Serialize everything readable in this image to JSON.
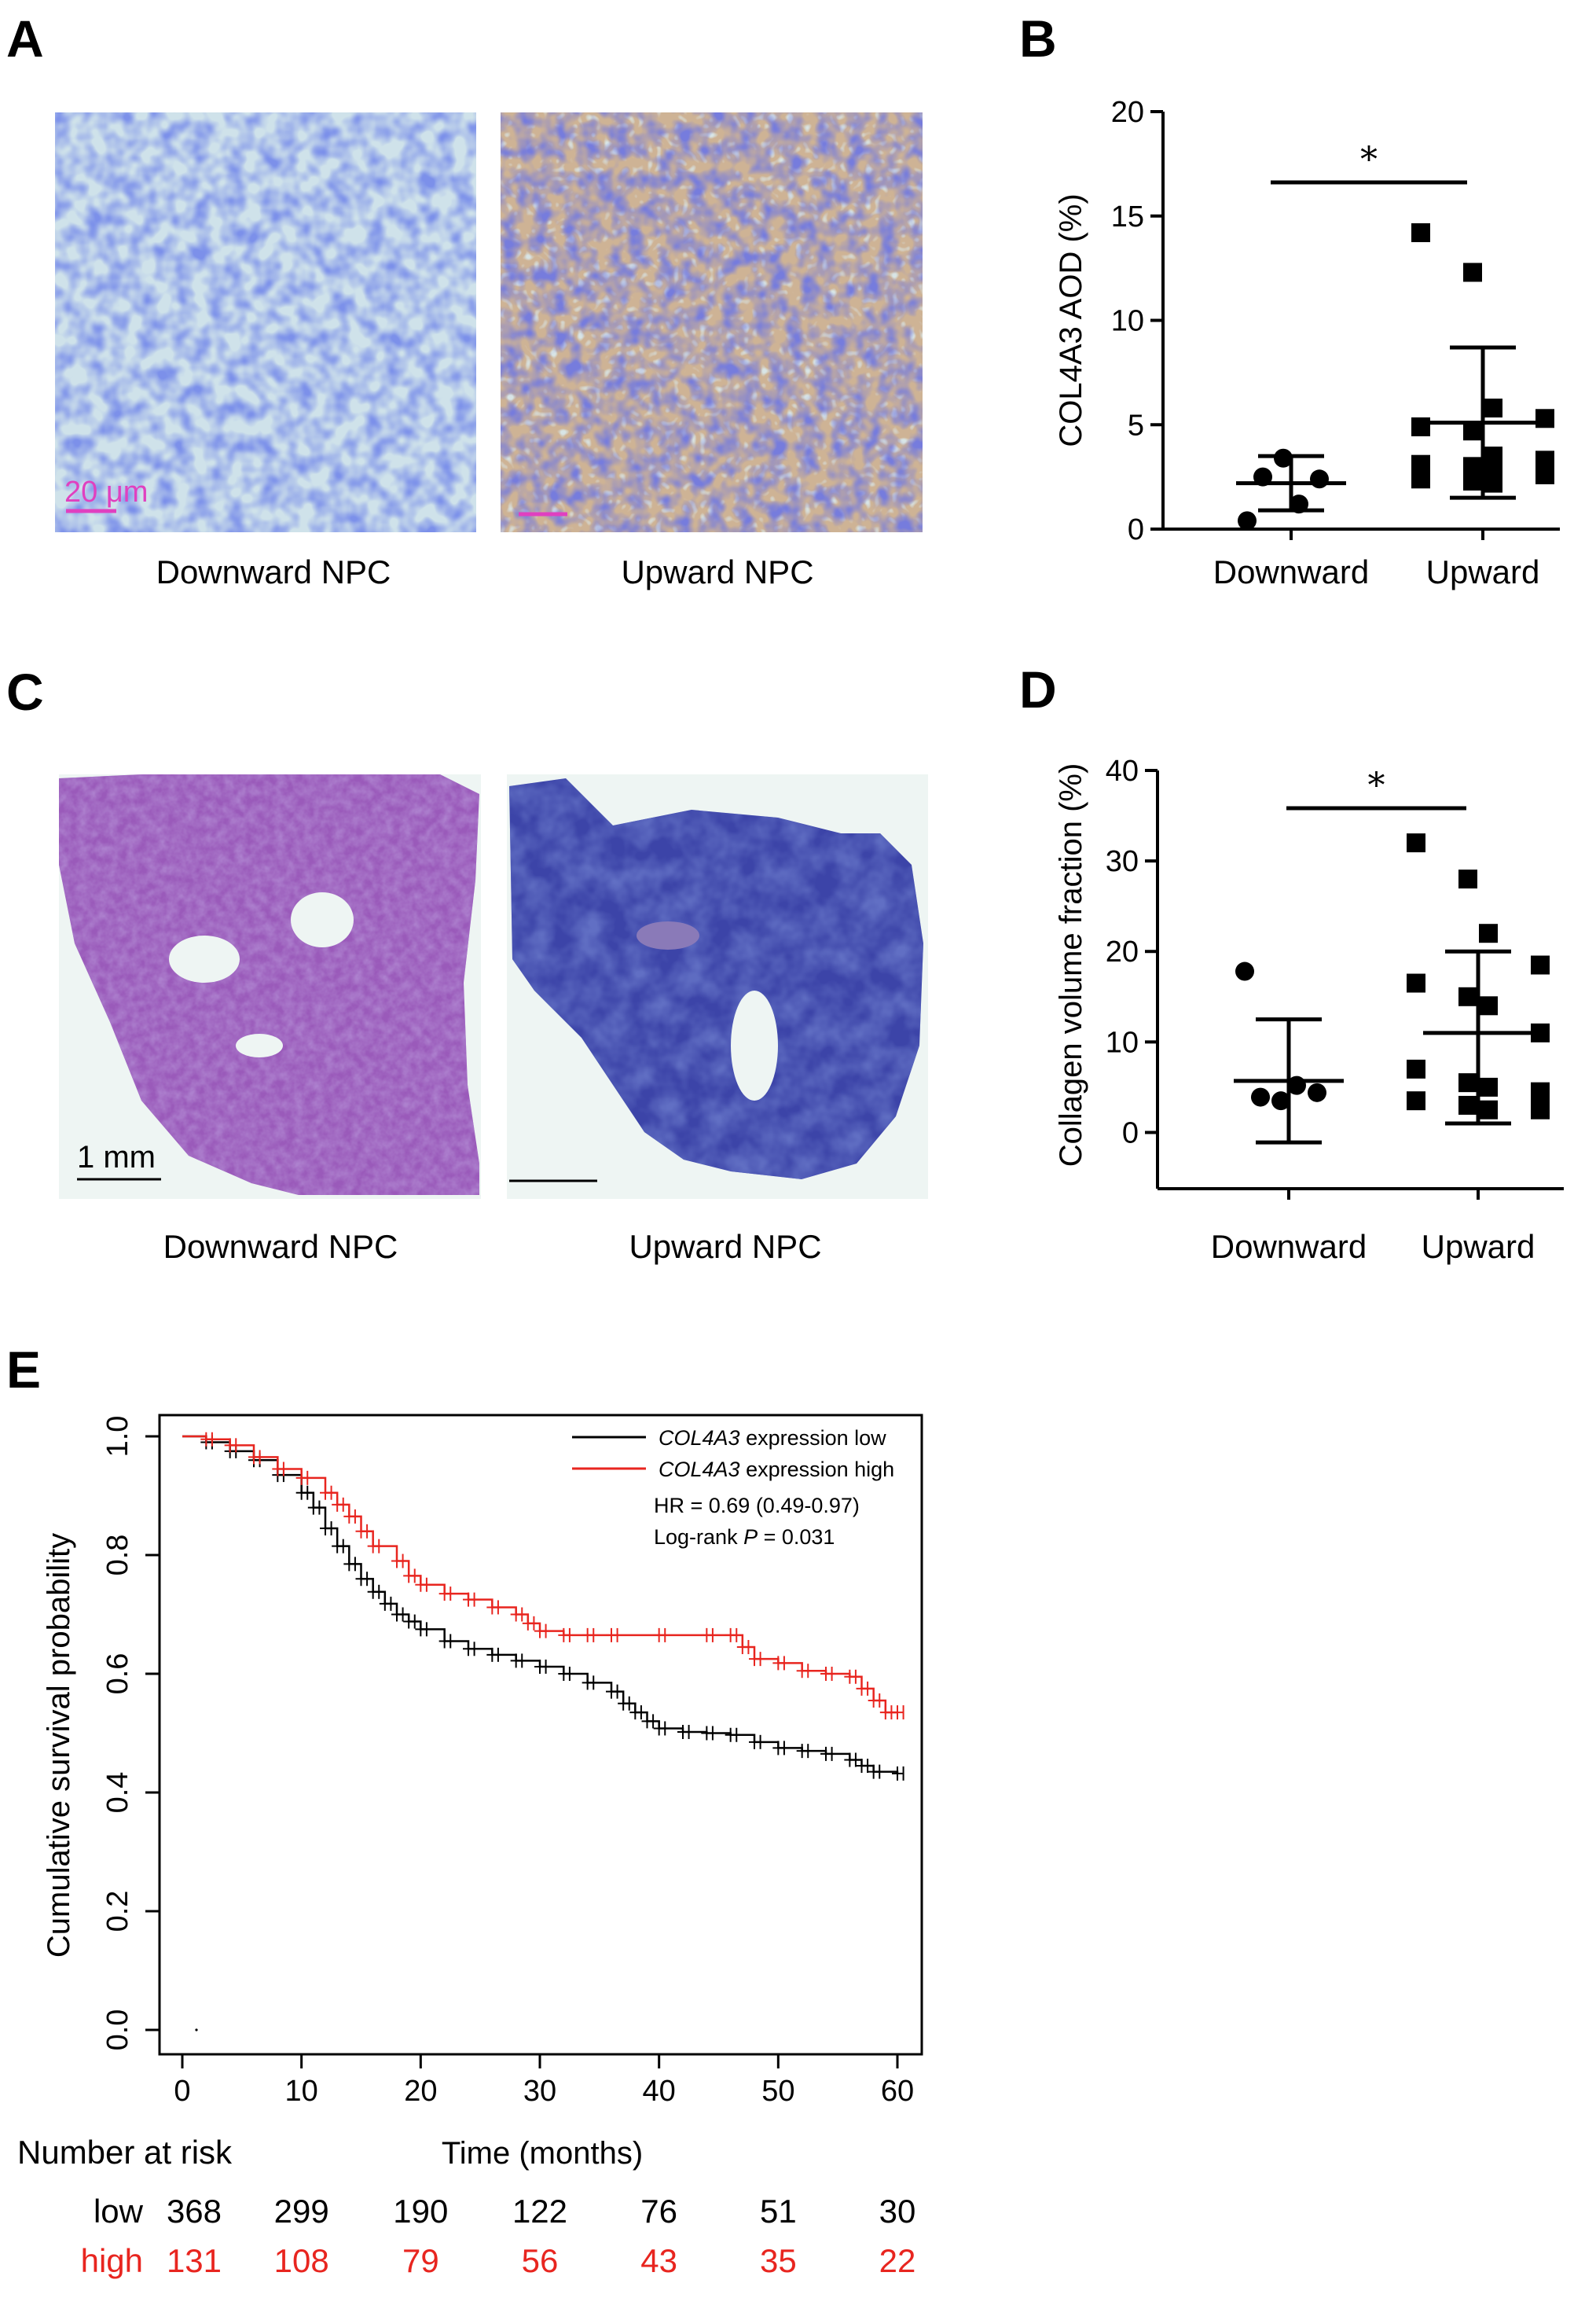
{
  "panels": {
    "A": {
      "label": "A",
      "left_caption": "Downward NPC",
      "right_caption": "Upward NPC",
      "scale_bar": "20 μm"
    },
    "B": {
      "label": "B",
      "significance": "*"
    },
    "C": {
      "label": "C",
      "left_caption": "Downward NPC",
      "right_caption": "Upward NPC",
      "scale_bar": "1 mm"
    },
    "D": {
      "label": "D",
      "significance": "*"
    },
    "E": {
      "label": "E",
      "risk_title": "Number at risk",
      "hr_text": "HR = 0.69 (0.49-0.97)",
      "logrank_prefix": "Log-rank ",
      "logrank_p": "P",
      "logrank_value": " = 0.031",
      "risk_table": {
        "rows": [
          {
            "label": "low",
            "color": "#000000",
            "values": [
              "368",
              "299",
              "190",
              "122",
              "76",
              "51",
              "30"
            ]
          },
          {
            "label": "high",
            "color": "#e8251f",
            "values": [
              "131",
              "108",
              "79",
              "56",
              "43",
              "35",
              "22"
            ]
          }
        ]
      }
    }
  },
  "colors": {
    "low": "#000000",
    "high": "#e8251f",
    "scale_pink": "#e040c0"
  },
  "chart_data": [
    {
      "id": "B",
      "type": "scatter",
      "title": "",
      "ylabel": "COL4A3 AOD (%)",
      "xlabel": "",
      "categories": [
        "Downward",
        "Upward"
      ],
      "ylim": [
        0,
        20
      ],
      "yticks": [
        0,
        5,
        10,
        15,
        20
      ],
      "series": [
        {
          "group": "Downward",
          "marker": "circle",
          "values": [
            0.4,
            1.2,
            2.4,
            2.5,
            3.4
          ],
          "mean": 2.2,
          "sd_low": 0.9,
          "sd_high": 3.5
        },
        {
          "group": "Upward",
          "marker": "square",
          "values": [
            14.2,
            12.3,
            5.8,
            5.3,
            4.9,
            4.7,
            3.5,
            3.3,
            3.1,
            3.0,
            2.8,
            2.6,
            2.4,
            2.3,
            2.2
          ],
          "mean": 5.1,
          "sd_low": 1.5,
          "sd_high": 8.7
        }
      ]
    },
    {
      "id": "D",
      "type": "scatter",
      "title": "",
      "ylabel": "Collagen volume fraction (%)",
      "xlabel": "",
      "categories": [
        "Downward",
        "Upward"
      ],
      "ylim": [
        -3,
        40
      ],
      "yticks": [
        0,
        10,
        20,
        30,
        40
      ],
      "series": [
        {
          "group": "Downward",
          "marker": "circle",
          "values": [
            17.8,
            5.2,
            4.4,
            3.9,
            3.5
          ],
          "mean": 5.7,
          "sd_low": -1.1,
          "sd_high": 12.5
        },
        {
          "group": "Upward",
          "marker": "square",
          "values": [
            32.0,
            28.0,
            22.0,
            18.5,
            16.5,
            15.0,
            14.0,
            11.0,
            7.0,
            5.5,
            5.0,
            4.5,
            3.5,
            3.0,
            2.5,
            2.5
          ],
          "mean": 11.0,
          "sd_low": 1.0,
          "sd_high": 20.0
        }
      ]
    },
    {
      "id": "E",
      "type": "line",
      "title": "",
      "xlabel": "Time (months)",
      "ylabel": "Cumulative survival probability",
      "xlim": [
        0,
        60
      ],
      "ylim": [
        0,
        1
      ],
      "xticks": [
        0,
        10,
        20,
        30,
        40,
        50,
        60
      ],
      "yticks": [
        "0.0",
        "0.2",
        "0.4",
        "0.6",
        "0.8",
        "1.0"
      ],
      "legend_position": "top-right",
      "series": [
        {
          "name_italic": "COL4A3",
          "name_rest": " expression low",
          "color": "#000000",
          "points": [
            [
              0,
              1.0
            ],
            [
              2,
              0.99
            ],
            [
              4,
              0.975
            ],
            [
              6,
              0.96
            ],
            [
              8,
              0.935
            ],
            [
              10,
              0.905
            ],
            [
              11,
              0.88
            ],
            [
              12,
              0.845
            ],
            [
              13,
              0.815
            ],
            [
              14,
              0.785
            ],
            [
              15,
              0.76
            ],
            [
              16,
              0.738
            ],
            [
              17,
              0.718
            ],
            [
              18,
              0.7
            ],
            [
              19,
              0.688
            ],
            [
              20,
              0.675
            ],
            [
              22,
              0.655
            ],
            [
              24,
              0.642
            ],
            [
              26,
              0.632
            ],
            [
              28,
              0.622
            ],
            [
              30,
              0.612
            ],
            [
              32,
              0.6
            ],
            [
              34,
              0.585
            ],
            [
              36,
              0.57
            ],
            [
              37,
              0.55
            ],
            [
              38,
              0.535
            ],
            [
              39,
              0.52
            ],
            [
              40,
              0.508
            ],
            [
              42,
              0.502
            ],
            [
              44,
              0.5
            ],
            [
              46,
              0.497
            ],
            [
              48,
              0.485
            ],
            [
              50,
              0.475
            ],
            [
              52,
              0.47
            ],
            [
              54,
              0.465
            ],
            [
              56,
              0.455
            ],
            [
              57,
              0.445
            ],
            [
              58,
              0.435
            ],
            [
              60,
              0.432
            ]
          ]
        },
        {
          "name_italic": "COL4A3",
          "name_rest": " expression high",
          "color": "#e8251f",
          "points": [
            [
              0,
              1.0
            ],
            [
              2,
              0.995
            ],
            [
              4,
              0.985
            ],
            [
              6,
              0.965
            ],
            [
              8,
              0.945
            ],
            [
              10,
              0.93
            ],
            [
              12,
              0.905
            ],
            [
              13,
              0.885
            ],
            [
              14,
              0.865
            ],
            [
              15,
              0.84
            ],
            [
              16,
              0.815
            ],
            [
              18,
              0.79
            ],
            [
              19,
              0.765
            ],
            [
              20,
              0.75
            ],
            [
              22,
              0.735
            ],
            [
              24,
              0.725
            ],
            [
              26,
              0.712
            ],
            [
              28,
              0.7
            ],
            [
              29,
              0.685
            ],
            [
              30,
              0.672
            ],
            [
              32,
              0.665
            ],
            [
              34,
              0.665
            ],
            [
              36,
              0.665
            ],
            [
              40,
              0.665
            ],
            [
              44,
              0.665
            ],
            [
              46,
              0.665
            ],
            [
              47,
              0.645
            ],
            [
              48,
              0.625
            ],
            [
              50,
              0.618
            ],
            [
              52,
              0.605
            ],
            [
              54,
              0.6
            ],
            [
              56,
              0.595
            ],
            [
              57,
              0.575
            ],
            [
              58,
              0.555
            ],
            [
              59,
              0.535
            ],
            [
              60,
              0.535
            ]
          ]
        }
      ]
    }
  ]
}
